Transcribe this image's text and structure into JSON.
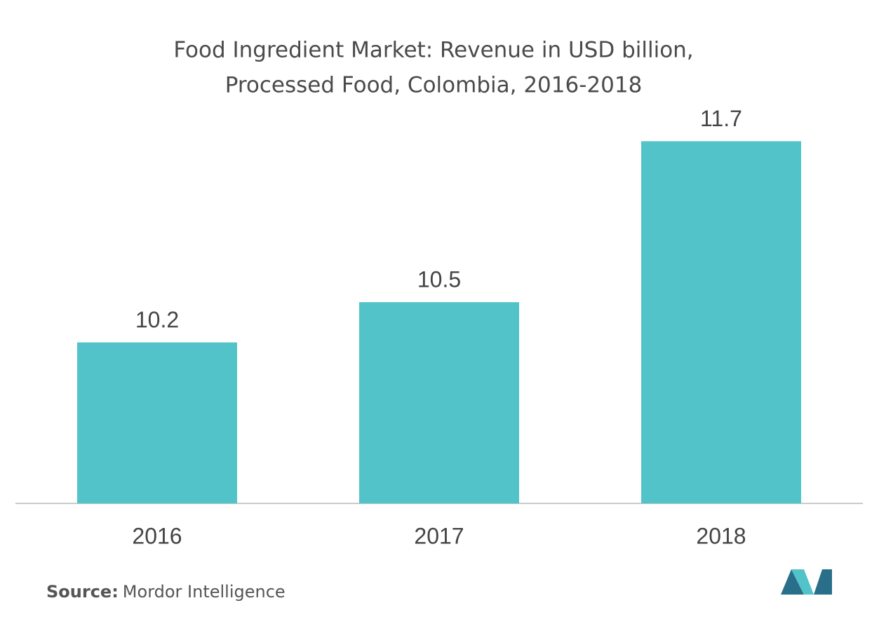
{
  "chart_data": {
    "type": "bar",
    "title": [
      "Food Ingredient Market: Revenue in USD billion,",
      "Processed Food, Colombia, 2016-2018"
    ],
    "categories": [
      "2016",
      "2017",
      "2018"
    ],
    "values": [
      10.2,
      10.5,
      11.7
    ],
    "color": "#51c3c9",
    "ylim": [
      9,
      12
    ],
    "source": {
      "label": "Source:",
      "text": "Mordor Intelligence"
    }
  }
}
